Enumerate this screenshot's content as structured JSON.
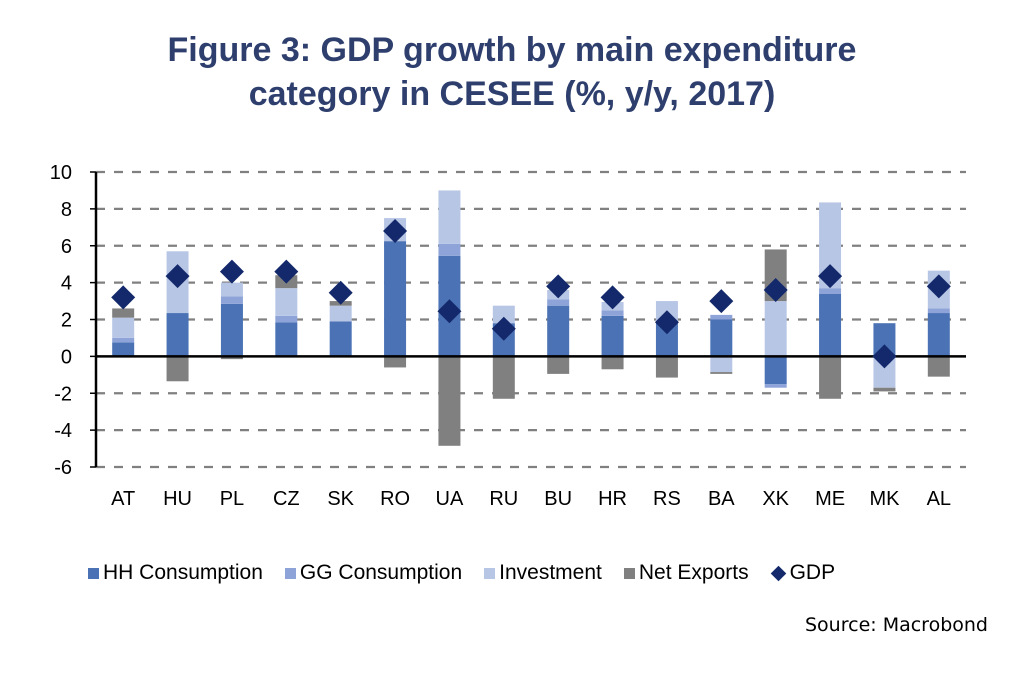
{
  "chart_data": {
    "type": "bar",
    "stacked": true,
    "title_lines": [
      "Figure 3: GDP growth by main expenditure",
      "category in CESEE (%, y/y, 2017)"
    ],
    "xlabel": "",
    "ylabel": "",
    "ylim": [
      -6,
      10
    ],
    "yticks": [
      -6,
      -4,
      -2,
      0,
      2,
      4,
      6,
      8,
      10
    ],
    "grid": true,
    "legend_position": "bottom",
    "categories": [
      "AT",
      "HU",
      "PL",
      "CZ",
      "SK",
      "RO",
      "UA",
      "RU",
      "BU",
      "HR",
      "RS",
      "BA",
      "XK",
      "ME",
      "MK",
      "AL"
    ],
    "series": [
      {
        "name": "HH Consumption",
        "kind": "bar",
        "color": "#4a72b5",
        "values": [
          0.75,
          2.35,
          2.85,
          1.85,
          1.9,
          6.25,
          5.45,
          1.8,
          2.75,
          2.2,
          1.8,
          2.0,
          -1.5,
          3.4,
          1.8,
          2.35
        ]
      },
      {
        "name": "GG Consumption",
        "kind": "bar",
        "color": "#8ea4d8",
        "values": [
          0.25,
          0.0,
          0.4,
          0.35,
          0.0,
          0.0,
          0.65,
          0.0,
          0.35,
          0.3,
          0.0,
          0.25,
          -0.2,
          0.3,
          0.0,
          0.25
        ]
      },
      {
        "name": "Investment",
        "kind": "bar",
        "color": "#b8c6e6",
        "values": [
          1.1,
          3.35,
          0.75,
          1.5,
          0.85,
          1.25,
          2.9,
          0.95,
          0.5,
          0.45,
          1.2,
          -0.85,
          3.0,
          4.65,
          -1.7,
          2.05
        ]
      },
      {
        "name": "Net Exports",
        "kind": "bar",
        "color": "#808080",
        "values": [
          0.5,
          -1.35,
          -0.15,
          0.7,
          0.25,
          -0.6,
          -4.85,
          -2.3,
          -0.95,
          -0.7,
          -1.15,
          -0.1,
          2.8,
          -2.3,
          -0.2,
          -1.1
        ]
      },
      {
        "name": "GDP",
        "kind": "marker",
        "marker": "diamond",
        "color": "#13296b",
        "values": [
          3.2,
          4.35,
          4.6,
          4.6,
          3.45,
          6.8,
          2.45,
          1.5,
          3.8,
          3.2,
          1.85,
          3.0,
          3.6,
          4.35,
          0.0,
          3.8
        ]
      }
    ]
  },
  "legend": {
    "items": [
      {
        "label": "HH Consumption",
        "color": "#4a72b5",
        "shape": "square"
      },
      {
        "label": "GG Consumption",
        "color": "#8ea4d8",
        "shape": "square"
      },
      {
        "label": "Investment",
        "color": "#b8c6e6",
        "shape": "square"
      },
      {
        "label": "Net Exports",
        "color": "#808080",
        "shape": "square"
      },
      {
        "label": "GDP",
        "color": "#13296b",
        "shape": "diamond"
      }
    ]
  },
  "source": "Source: Macrobond",
  "colors": {
    "title": "#2e3f6e",
    "grid": "#808080",
    "axis": "#000000"
  }
}
